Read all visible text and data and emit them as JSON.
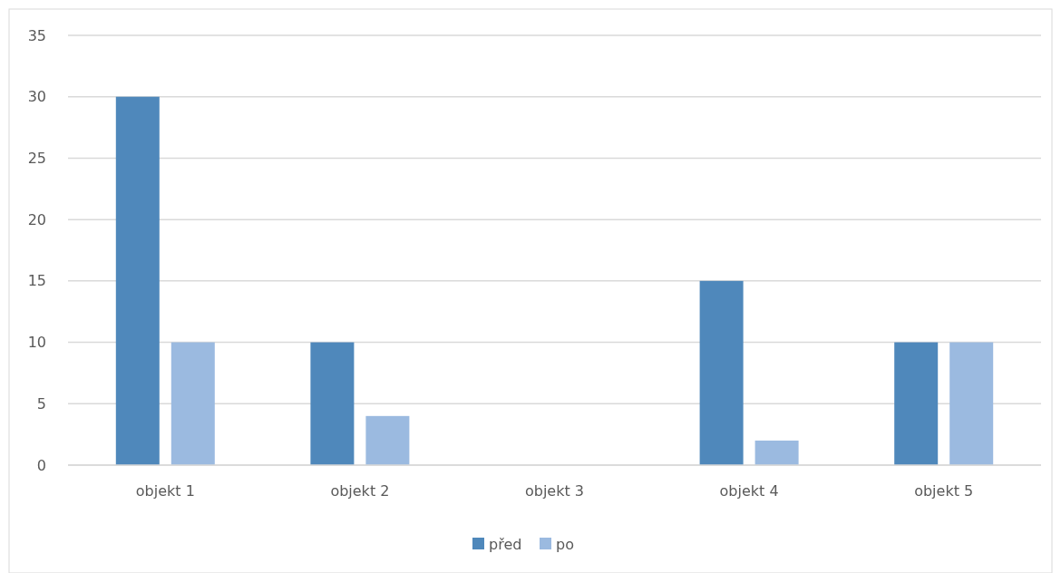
{
  "chart_data": {
    "type": "bar",
    "categories": [
      "objekt 1",
      "objekt 2",
      "objekt 3",
      "objekt 4",
      "objekt 5"
    ],
    "series": [
      {
        "name": "před",
        "color": "#4f88bb",
        "values": [
          30,
          10,
          0,
          15,
          10
        ]
      },
      {
        "name": "po",
        "color": "#9bbae0",
        "values": [
          10,
          4,
          0,
          2,
          10
        ]
      }
    ],
    "ylim": [
      0,
      35
    ],
    "yticks": [
      0,
      5,
      10,
      15,
      20,
      25,
      30,
      35
    ],
    "grid": "y",
    "legend": "bottom"
  }
}
